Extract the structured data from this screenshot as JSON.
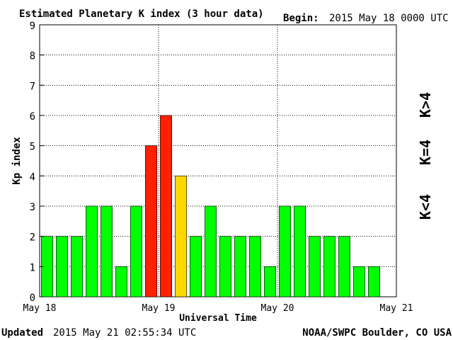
{
  "header": {
    "title": "Estimated Planetary K index (3 hour data)",
    "begin_label": "Begin:",
    "begin_value": "2015 May 18 0000 UTC"
  },
  "footer": {
    "updated_label": "Updated",
    "updated_value": "2015 May 21 02:55:34 UTC",
    "source": "NOAA/SWPC Boulder, CO USA"
  },
  "legend": {
    "below": "K<4",
    "equal": "K=4",
    "above": "K>4"
  },
  "colors": {
    "below": "#00ff00",
    "equal": "#ffd700",
    "above": "#ff2000"
  },
  "chart_data": {
    "type": "bar",
    "title": "Estimated Planetary K index (3 hour data)",
    "xlabel": "Universal Time",
    "ylabel": "Kp index",
    "ylim": [
      0,
      9
    ],
    "yticks": [
      0,
      1,
      2,
      3,
      4,
      5,
      6,
      7,
      8,
      9
    ],
    "xtick_labels": [
      "May 18",
      "May 19",
      "May 20",
      "May 21"
    ],
    "grid": true,
    "bars_per_day": 8,
    "values": [
      2,
      2,
      2,
      3,
      3,
      1,
      3,
      5,
      6,
      4,
      2,
      3,
      2,
      2,
      2,
      1,
      3,
      3,
      2,
      2,
      2,
      1,
      1
    ]
  }
}
